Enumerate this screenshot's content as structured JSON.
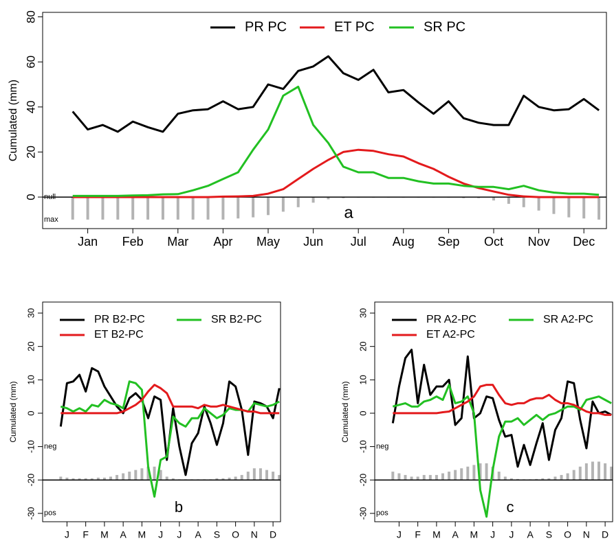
{
  "chart_data": [
    {
      "type": "line",
      "ylabel": "Cumulated (mm)",
      "annotation": "a",
      "legend": "top",
      "x": [
        1,
        2,
        3,
        4,
        5,
        6,
        7,
        8,
        9,
        10,
        11,
        12,
        13,
        14,
        15,
        16,
        17,
        18,
        19,
        20,
        21,
        22,
        23,
        24,
        25,
        26,
        27,
        28,
        29,
        30,
        31,
        32,
        33,
        34,
        35,
        36
      ],
      "xlim": [
        -1,
        36.5
      ],
      "xticks": [
        {
          "value": 2,
          "label": "Jan"
        },
        {
          "value": 5,
          "label": "Feb"
        },
        {
          "value": 8,
          "label": "Mar"
        },
        {
          "value": 11,
          "label": "Apr"
        },
        {
          "value": 14,
          "label": "May"
        },
        {
          "value": 17,
          "label": "Jun"
        },
        {
          "value": 20,
          "label": "Jul"
        },
        {
          "value": 23,
          "label": "Aug"
        },
        {
          "value": 26,
          "label": "Sep"
        },
        {
          "value": 29,
          "label": "Oct"
        },
        {
          "value": 32,
          "label": "Nov"
        },
        {
          "value": 35,
          "label": "Dec"
        }
      ],
      "ylim": [
        -14,
        82
      ],
      "yticks": [
        0,
        20,
        40,
        60,
        80
      ],
      "baseline": 0,
      "ref_labels": [
        {
          "value": 0,
          "label": "null"
        },
        {
          "value": -10,
          "label": "max"
        }
      ],
      "bars": {
        "color": "#b3b3b3",
        "values": [
          -10,
          -10,
          -10,
          -10,
          -10,
          -10,
          -10,
          -10,
          -10,
          -10,
          -10,
          -9.5,
          -9,
          -8,
          -6.5,
          -4.5,
          -2.5,
          -1,
          -0.5,
          -0.3,
          -0.3,
          -0.3,
          -0.3,
          -0.3,
          -0.3,
          -0.3,
          -0.5,
          -0.5,
          -1.5,
          -3,
          -4.5,
          -6,
          -7.5,
          -9,
          -9.5,
          -10
        ]
      },
      "series": [
        {
          "name": "PR PC",
          "color": "#000000",
          "values": [
            38,
            30,
            32,
            29,
            33.5,
            31,
            29,
            37,
            38.5,
            39,
            42.5,
            39,
            40,
            50,
            48,
            56,
            58,
            62.5,
            55,
            52,
            56.5,
            46.5,
            47.5,
            42,
            37,
            42.5,
            35,
            33,
            32,
            32,
            45,
            40,
            38.5,
            39,
            43.5,
            38.5
          ]
        },
        {
          "name": "ET PC",
          "color": "#e31a1c",
          "values": [
            0,
            0,
            0,
            0,
            0,
            0,
            0,
            0,
            0,
            0,
            0.2,
            0.3,
            0.5,
            1.5,
            3.5,
            8,
            12.5,
            16.5,
            20,
            21,
            20.5,
            19,
            18,
            15,
            12.5,
            9,
            6,
            4,
            2.5,
            1,
            0.3,
            0,
            0,
            0,
            0,
            0
          ]
        },
        {
          "name": "SR PC",
          "color": "#22c022",
          "values": [
            0.5,
            0.5,
            0.5,
            0.5,
            0.7,
            0.8,
            1.2,
            1.3,
            3,
            5,
            8,
            11,
            21,
            30,
            45,
            49,
            32,
            24,
            13.5,
            11,
            11,
            8.5,
            8.5,
            7,
            6,
            6,
            5,
            4.5,
            4.5,
            3.5,
            5,
            3,
            2,
            1.5,
            1.5,
            1
          ]
        }
      ]
    },
    {
      "type": "line",
      "ylabel": "Cumulated (mm)",
      "annotation": "b",
      "legend": "top-left",
      "x": [
        1,
        2,
        3,
        4,
        5,
        6,
        7,
        8,
        9,
        10,
        11,
        12,
        13,
        14,
        15,
        16,
        17,
        18,
        19,
        20,
        21,
        22,
        23,
        24,
        25,
        26,
        27,
        28,
        29,
        30,
        31,
        32,
        33,
        34,
        35,
        36
      ],
      "xlim": [
        -1.9,
        36.2
      ],
      "xticks": [
        {
          "value": 2,
          "label": "J"
        },
        {
          "value": 5,
          "label": "F"
        },
        {
          "value": 8,
          "label": "M"
        },
        {
          "value": 11,
          "label": "A"
        },
        {
          "value": 14,
          "label": "M"
        },
        {
          "value": 17,
          "label": "J"
        },
        {
          "value": 20,
          "label": "J"
        },
        {
          "value": 23,
          "label": "A"
        },
        {
          "value": 26,
          "label": "S"
        },
        {
          "value": 29,
          "label": "O"
        },
        {
          "value": 32,
          "label": "N"
        },
        {
          "value": 35,
          "label": "D"
        }
      ],
      "ylim": [
        -32.5,
        33.3
      ],
      "yticks": [
        -30,
        -20,
        -10,
        0,
        10,
        20,
        30
      ],
      "baseline": -20,
      "ref_labels": [
        {
          "value": -10,
          "label": "neg"
        },
        {
          "value": -30,
          "label": "pos"
        }
      ],
      "bars": {
        "color": "#b3b3b3",
        "values": [
          -19,
          -19.3,
          -19.5,
          -19.5,
          -19.5,
          -19.5,
          -19.3,
          -19.3,
          -19,
          -18.5,
          -18,
          -17.5,
          -17,
          -16.5,
          -16,
          -16,
          -17,
          -19,
          -19.5,
          -19.8,
          -19.8,
          -19.8,
          -19.8,
          -19.8,
          -19.8,
          -19.5,
          -19.5,
          -19.3,
          -19,
          -18.5,
          -17.5,
          -16.5,
          -16.5,
          -17,
          -17.5,
          -18.5
        ]
      },
      "series": [
        {
          "name": "PR B2-PC",
          "color": "#000000",
          "values": [
            -4,
            9,
            9.5,
            11.5,
            6.5,
            13.5,
            12.5,
            8,
            5,
            2,
            0,
            4.5,
            6,
            4,
            -1.5,
            5,
            4,
            -14,
            1.5,
            -10,
            -18.5,
            -9,
            -6,
            2,
            -3,
            -9.5,
            -3,
            9.5,
            8,
            1,
            -12.5,
            3.5,
            3,
            2,
            -1.5,
            7.5
          ]
        },
        {
          "name": "SR B2-PC",
          "color": "#22c022",
          "values": [
            2,
            1.5,
            0.5,
            1.5,
            0.5,
            2.5,
            2,
            4,
            3,
            2.5,
            1.5,
            9.5,
            9,
            7,
            -16,
            -25,
            -14,
            -13,
            -1,
            -3,
            -4,
            -1.5,
            -1.5,
            1.5,
            0,
            -1.5,
            -0.5,
            1.5,
            1,
            1,
            0.5,
            3,
            2.5,
            2,
            2.5,
            3.5
          ]
        },
        {
          "name": "ET B2-PC",
          "color": "#e31a1c",
          "values": [
            0,
            0,
            0,
            0,
            0,
            0,
            0,
            0,
            0,
            0,
            0.5,
            1.5,
            2.5,
            4,
            6.5,
            8.5,
            7.5,
            6,
            2,
            2,
            2,
            2,
            1.5,
            2.5,
            2,
            2,
            2.5,
            2,
            1.5,
            1,
            0.5,
            0.5,
            0,
            0,
            0,
            0
          ]
        }
      ]
    },
    {
      "type": "line",
      "ylabel": "Cumulated (mm)",
      "annotation": "c",
      "legend": "top-left",
      "x": [
        1,
        2,
        3,
        4,
        5,
        6,
        7,
        8,
        9,
        10,
        11,
        12,
        13,
        14,
        15,
        16,
        17,
        18,
        19,
        20,
        21,
        22,
        23,
        24,
        25,
        26,
        27,
        28,
        29,
        30,
        31,
        32,
        33,
        34,
        35,
        36
      ],
      "xlim": [
        -1.9,
        36.2
      ],
      "xticks": [
        {
          "value": 2,
          "label": "J"
        },
        {
          "value": 5,
          "label": "F"
        },
        {
          "value": 8,
          "label": "M"
        },
        {
          "value": 11,
          "label": "A"
        },
        {
          "value": 14,
          "label": "M"
        },
        {
          "value": 17,
          "label": "J"
        },
        {
          "value": 20,
          "label": "J"
        },
        {
          "value": 23,
          "label": "A"
        },
        {
          "value": 26,
          "label": "S"
        },
        {
          "value": 29,
          "label": "O"
        },
        {
          "value": 32,
          "label": "N"
        },
        {
          "value": 35,
          "label": "D"
        }
      ],
      "ylim": [
        -32.5,
        33.3
      ],
      "yticks": [
        -30,
        -20,
        -10,
        0,
        10,
        20,
        30
      ],
      "baseline": -20,
      "ref_labels": [
        {
          "value": -10,
          "label": "neg"
        },
        {
          "value": -30,
          "label": "pos"
        }
      ],
      "bars": {
        "color": "#b3b3b3",
        "values": [
          -17.5,
          -18,
          -18.5,
          -19,
          -19,
          -18.5,
          -18.5,
          -18.5,
          -18,
          -17.5,
          -17,
          -16.5,
          -16,
          -15.5,
          -15,
          -15,
          -16,
          -17.5,
          -19,
          -19.5,
          -19.7,
          -19.8,
          -19.8,
          -19.7,
          -19.5,
          -19.5,
          -19,
          -18.5,
          -18,
          -17,
          -16,
          -15,
          -14.5,
          -14.5,
          -15,
          -16
        ]
      },
      "series": [
        {
          "name": "PR A2-PC",
          "color": "#000000",
          "values": [
            -3,
            8,
            16.5,
            19,
            3,
            14.5,
            5.5,
            8,
            8,
            10,
            -3.5,
            -1.5,
            17,
            -1.5,
            0,
            5,
            4.5,
            -2,
            -7,
            -6.5,
            -16,
            -9.5,
            -15.5,
            -9,
            -3,
            -14,
            -5,
            -1.5,
            9.5,
            9,
            -2,
            -10.5,
            3.5,
            0,
            0.5,
            -0.5
          ]
        },
        {
          "name": "SR A2-PC",
          "color": "#22c022",
          "values": [
            2,
            2.5,
            3,
            2,
            2,
            3.5,
            4,
            5,
            4,
            8.5,
            3,
            3.5,
            5,
            0,
            -23,
            -31,
            -17,
            -7,
            -2.5,
            -2.5,
            -1.5,
            -3.5,
            -2,
            -0.5,
            -2,
            -0.5,
            0,
            1,
            2,
            2,
            1,
            4,
            4.5,
            5,
            4,
            3
          ]
        },
        {
          "name": "ET A2-PC",
          "color": "#e31a1c",
          "values": [
            0,
            0,
            0,
            0,
            0,
            0,
            0,
            0,
            0.3,
            0.5,
            1.5,
            2.5,
            3.5,
            5,
            8,
            8.5,
            8.5,
            5.5,
            3,
            2.5,
            3,
            3,
            4,
            4.5,
            4.5,
            5.5,
            4,
            3,
            3,
            2.5,
            1.5,
            0.5,
            0,
            0,
            -0.5,
            -0.5
          ]
        }
      ]
    }
  ]
}
